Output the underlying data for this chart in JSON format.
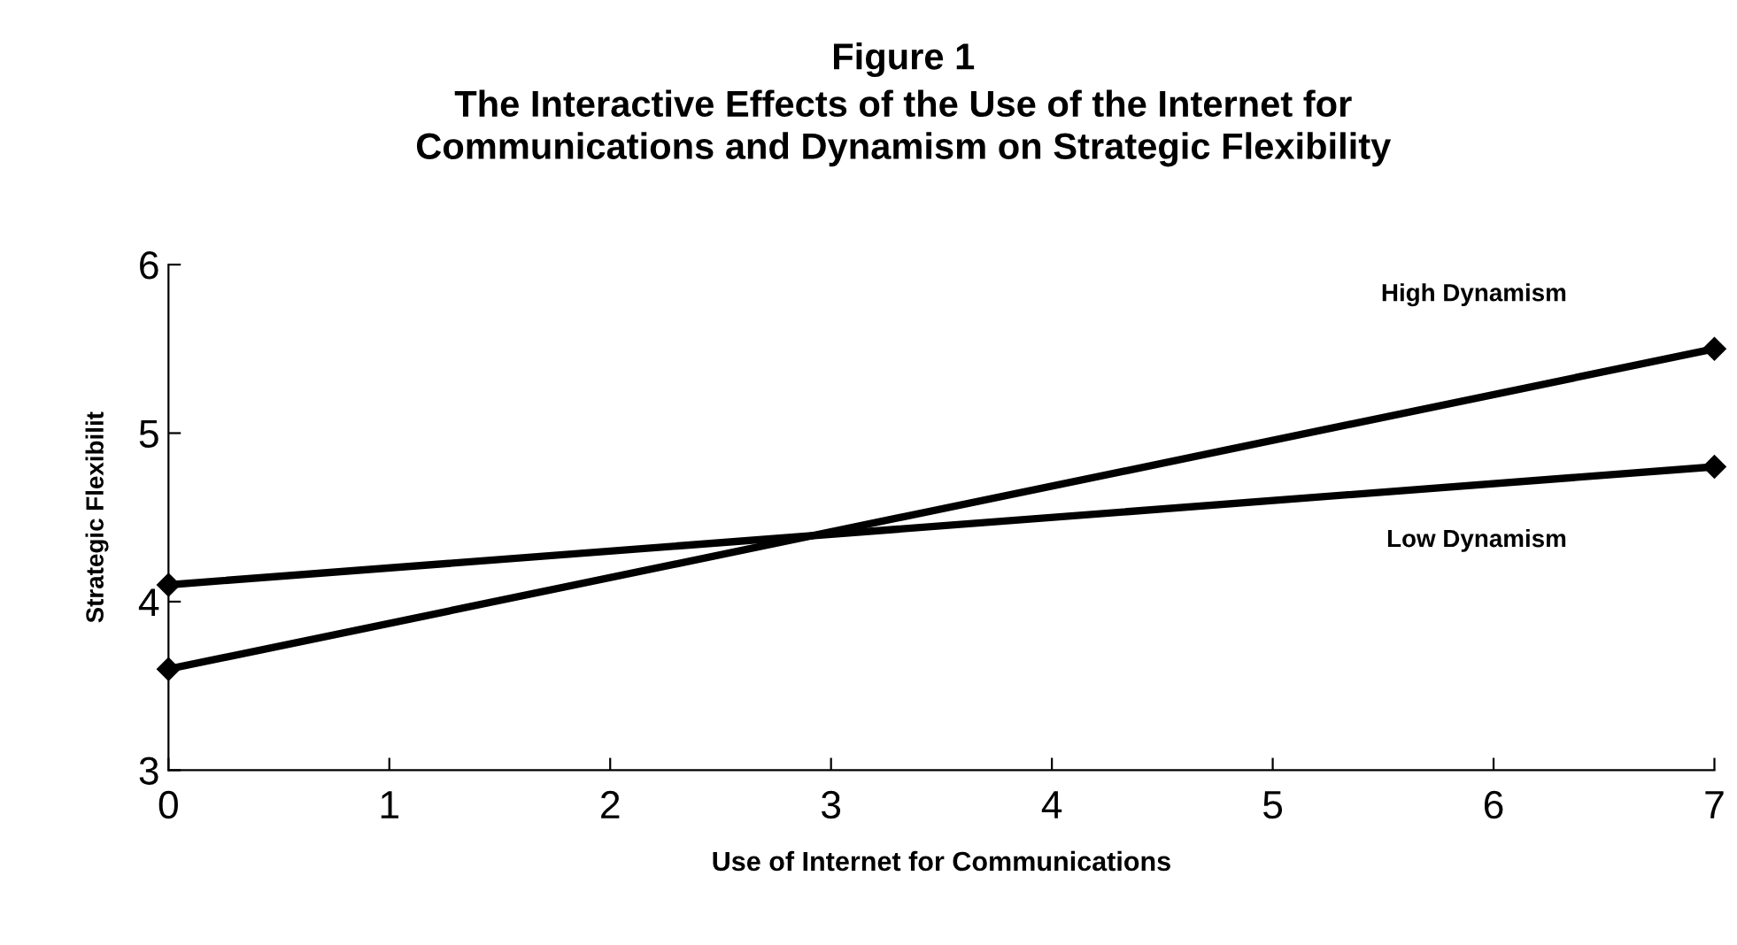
{
  "chart_data": {
    "type": "line",
    "title": "Figure 1",
    "subtitle": "The Interactive Effects of the Use of the Internet for\nCommunications and Dynamism on Strategic Flexibility",
    "xlabel": "Use of Internet for Communications",
    "ylabel": "Strategic Flexibilit",
    "x": [
      0,
      7
    ],
    "series": [
      {
        "name": "High Dynamism",
        "color": "#000000",
        "values": [
          3.6,
          5.5
        ]
      },
      {
        "name": "Low Dynamism",
        "color": "#000000",
        "values": [
          4.1,
          4.8
        ]
      }
    ],
    "xlim": [
      0,
      7
    ],
    "xticks": [
      0,
      1,
      2,
      3,
      4,
      5,
      6,
      7
    ],
    "ylim": [
      3,
      6
    ],
    "yticks": [
      3,
      4,
      5,
      6
    ],
    "grid": false,
    "legend": false,
    "marker": "diamond",
    "line_style": "solid"
  }
}
